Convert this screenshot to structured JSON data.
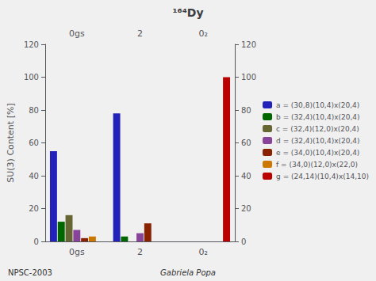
{
  "chart_data": {
    "type": "bar",
    "title": "¹⁶⁴Dy",
    "ylabel": "SU(3) Content [%]",
    "categories": [
      "0gs",
      "2",
      "0₂"
    ],
    "series": [
      {
        "name": "a = (30,8)(10,4)x(20,4)",
        "color": "#2222BB",
        "values": [
          55,
          78,
          0
        ]
      },
      {
        "name": "b = (32,4)(10,4)x(20,4)",
        "color": "#006600",
        "values": [
          12,
          3,
          0
        ]
      },
      {
        "name": "c = (32,4)(12,0)x(20,4)",
        "color": "#666633",
        "values": [
          16,
          0,
          0
        ]
      },
      {
        "name": "d = (32,4)(10,4)x(20,4)",
        "color": "#884499",
        "values": [
          7,
          5,
          0
        ]
      },
      {
        "name": "e = (34,0)(10,4)x(20,4)",
        "color": "#882200",
        "values": [
          2,
          11,
          0
        ]
      },
      {
        "name": "f = (34,0)(12,0)x(22,0)",
        "color": "#CC7700",
        "values": [
          3,
          0,
          0
        ]
      },
      {
        "name": "g = (24,14)(10,4)x(14,10)",
        "color": "#BB0000",
        "values": [
          0,
          0,
          100
        ]
      }
    ],
    "ylim": [
      0,
      120
    ],
    "yticks": [
      0,
      20,
      40,
      60,
      80,
      100,
      120
    ],
    "grid": false,
    "legend": "right",
    "annotations": [
      "NPSC-2003",
      "Gabriela Popa"
    ]
  }
}
